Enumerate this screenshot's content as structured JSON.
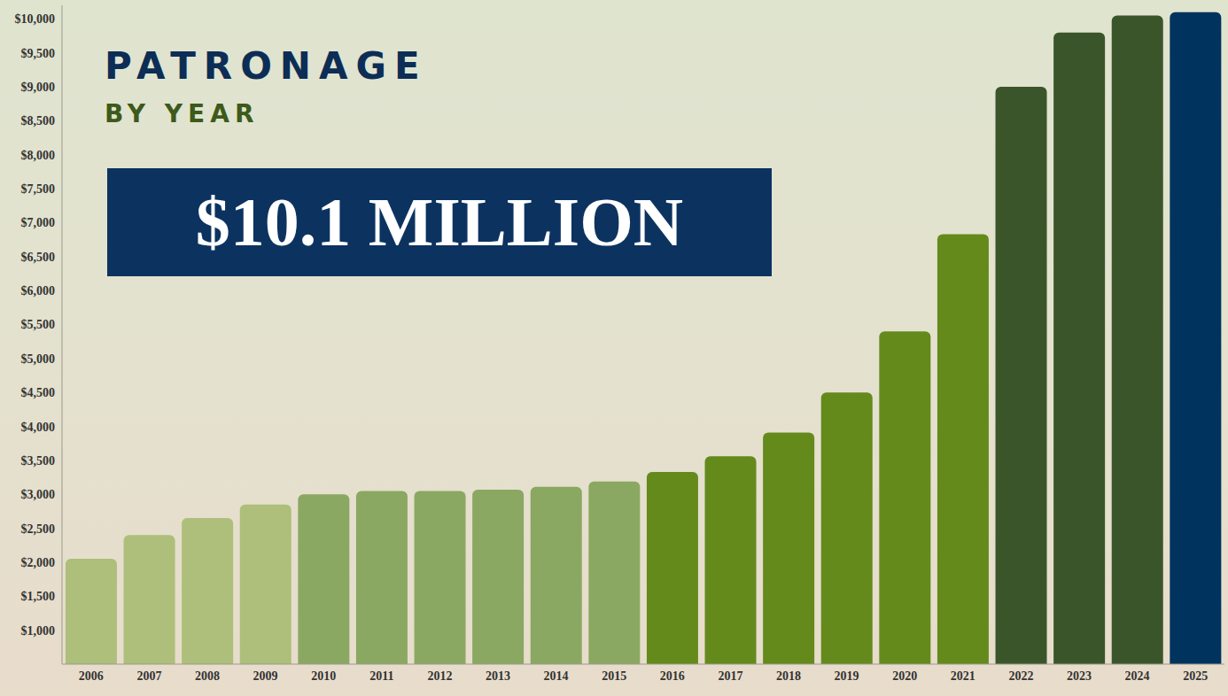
{
  "chart_data": {
    "type": "bar",
    "title": "PATRONAGE",
    "subtitle": "BY YEAR",
    "annotation": "$10.1 MILLION",
    "categories": [
      "2006",
      "2007",
      "2008",
      "2009",
      "2010",
      "2011",
      "2012",
      "2013",
      "2014",
      "2015",
      "2016",
      "2017",
      "2018",
      "2019",
      "2020",
      "2021",
      "2022",
      "2023",
      "2024",
      "2025"
    ],
    "values": [
      2050,
      2400,
      2650,
      2850,
      3000,
      3050,
      3050,
      3070,
      3110,
      3190,
      3330,
      3560,
      3910,
      4500,
      5400,
      6830,
      9000,
      9800,
      10050,
      10100
    ],
    "colors": [
      "#adbf7a",
      "#adbf7a",
      "#adbf7a",
      "#adbf7a",
      "#8aa862",
      "#8aa862",
      "#8aa862",
      "#8aa862",
      "#8aa862",
      "#8aa862",
      "#648a1c",
      "#648a1c",
      "#648a1c",
      "#648a1c",
      "#648a1c",
      "#648a1c",
      "#3b552b",
      "#3b552b",
      "#3b552b",
      "#00335e"
    ],
    "ylim": [
      500,
      10200
    ],
    "yticks": [
      {
        "value": 1000,
        "label": "$1,000"
      },
      {
        "value": 1500,
        "label": "$1,500"
      },
      {
        "value": 2000,
        "label": "$2,000"
      },
      {
        "value": 2500,
        "label": "$2,500"
      },
      {
        "value": 3000,
        "label": "$3,000"
      },
      {
        "value": 3500,
        "label": "$3,500"
      },
      {
        "value": 4000,
        "label": "$4,000"
      },
      {
        "value": 4500,
        "label": "$4,500"
      },
      {
        "value": 5000,
        "label": "$5,000"
      },
      {
        "value": 5500,
        "label": "$5,500"
      },
      {
        "value": 6000,
        "label": "$6,000"
      },
      {
        "value": 6500,
        "label": "$6,500"
      },
      {
        "value": 7000,
        "label": "$7,000"
      },
      {
        "value": 7500,
        "label": "$7,500"
      },
      {
        "value": 8000,
        "label": "$8,000"
      },
      {
        "value": 8500,
        "label": "$8,500"
      },
      {
        "value": 9000,
        "label": "$9,000"
      },
      {
        "value": 9500,
        "label": "$9,500"
      },
      {
        "value": 10000,
        "label": "$10,000"
      }
    ],
    "grid": false
  }
}
